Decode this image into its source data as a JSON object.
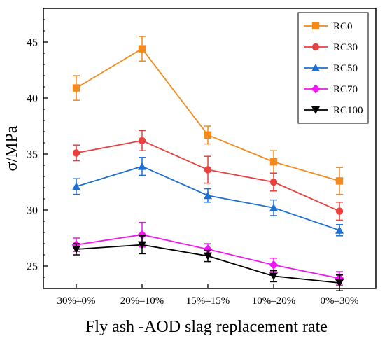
{
  "chart_data": {
    "type": "line",
    "title": "",
    "xlabel": "Fly ash -AOD slag replacement rate",
    "ylabel": "σ/MPa",
    "categories": [
      "30%–0%",
      "20%–10%",
      "15%–15%",
      "10%–20%",
      "0%–30%"
    ],
    "ylim": [
      23,
      48
    ],
    "yticks": [
      25,
      30,
      35,
      40,
      45
    ],
    "grid": false,
    "legend_position": "top-right",
    "series": [
      {
        "name": "RC0",
        "color": "#F28A1C",
        "marker": "square",
        "values": [
          40.9,
          44.4,
          36.7,
          34.3,
          32.6
        ],
        "errors": [
          1.1,
          1.1,
          0.8,
          1.0,
          1.2
        ]
      },
      {
        "name": "RC30",
        "color": "#E8413F",
        "marker": "circle",
        "values": [
          35.1,
          36.2,
          33.6,
          32.5,
          29.9
        ],
        "errors": [
          0.7,
          0.9,
          1.2,
          0.8,
          0.8
        ]
      },
      {
        "name": "RC50",
        "color": "#1F6FD0",
        "marker": "triangle-up",
        "values": [
          32.1,
          33.9,
          31.3,
          30.2,
          28.2
        ],
        "errors": [
          0.7,
          0.8,
          0.6,
          0.7,
          0.5
        ]
      },
      {
        "name": "RC70",
        "color": "#F016F0",
        "marker": "diamond",
        "values": [
          26.9,
          27.8,
          26.5,
          25.1,
          23.9
        ],
        "errors": [
          0.6,
          1.1,
          0.5,
          0.6,
          0.6
        ]
      },
      {
        "name": "RC100",
        "color": "#000000",
        "marker": "triangle-down",
        "values": [
          26.5,
          26.9,
          25.9,
          24.1,
          23.5
        ],
        "errors": [
          0.5,
          0.8,
          0.5,
          0.5,
          0.7
        ]
      }
    ]
  }
}
